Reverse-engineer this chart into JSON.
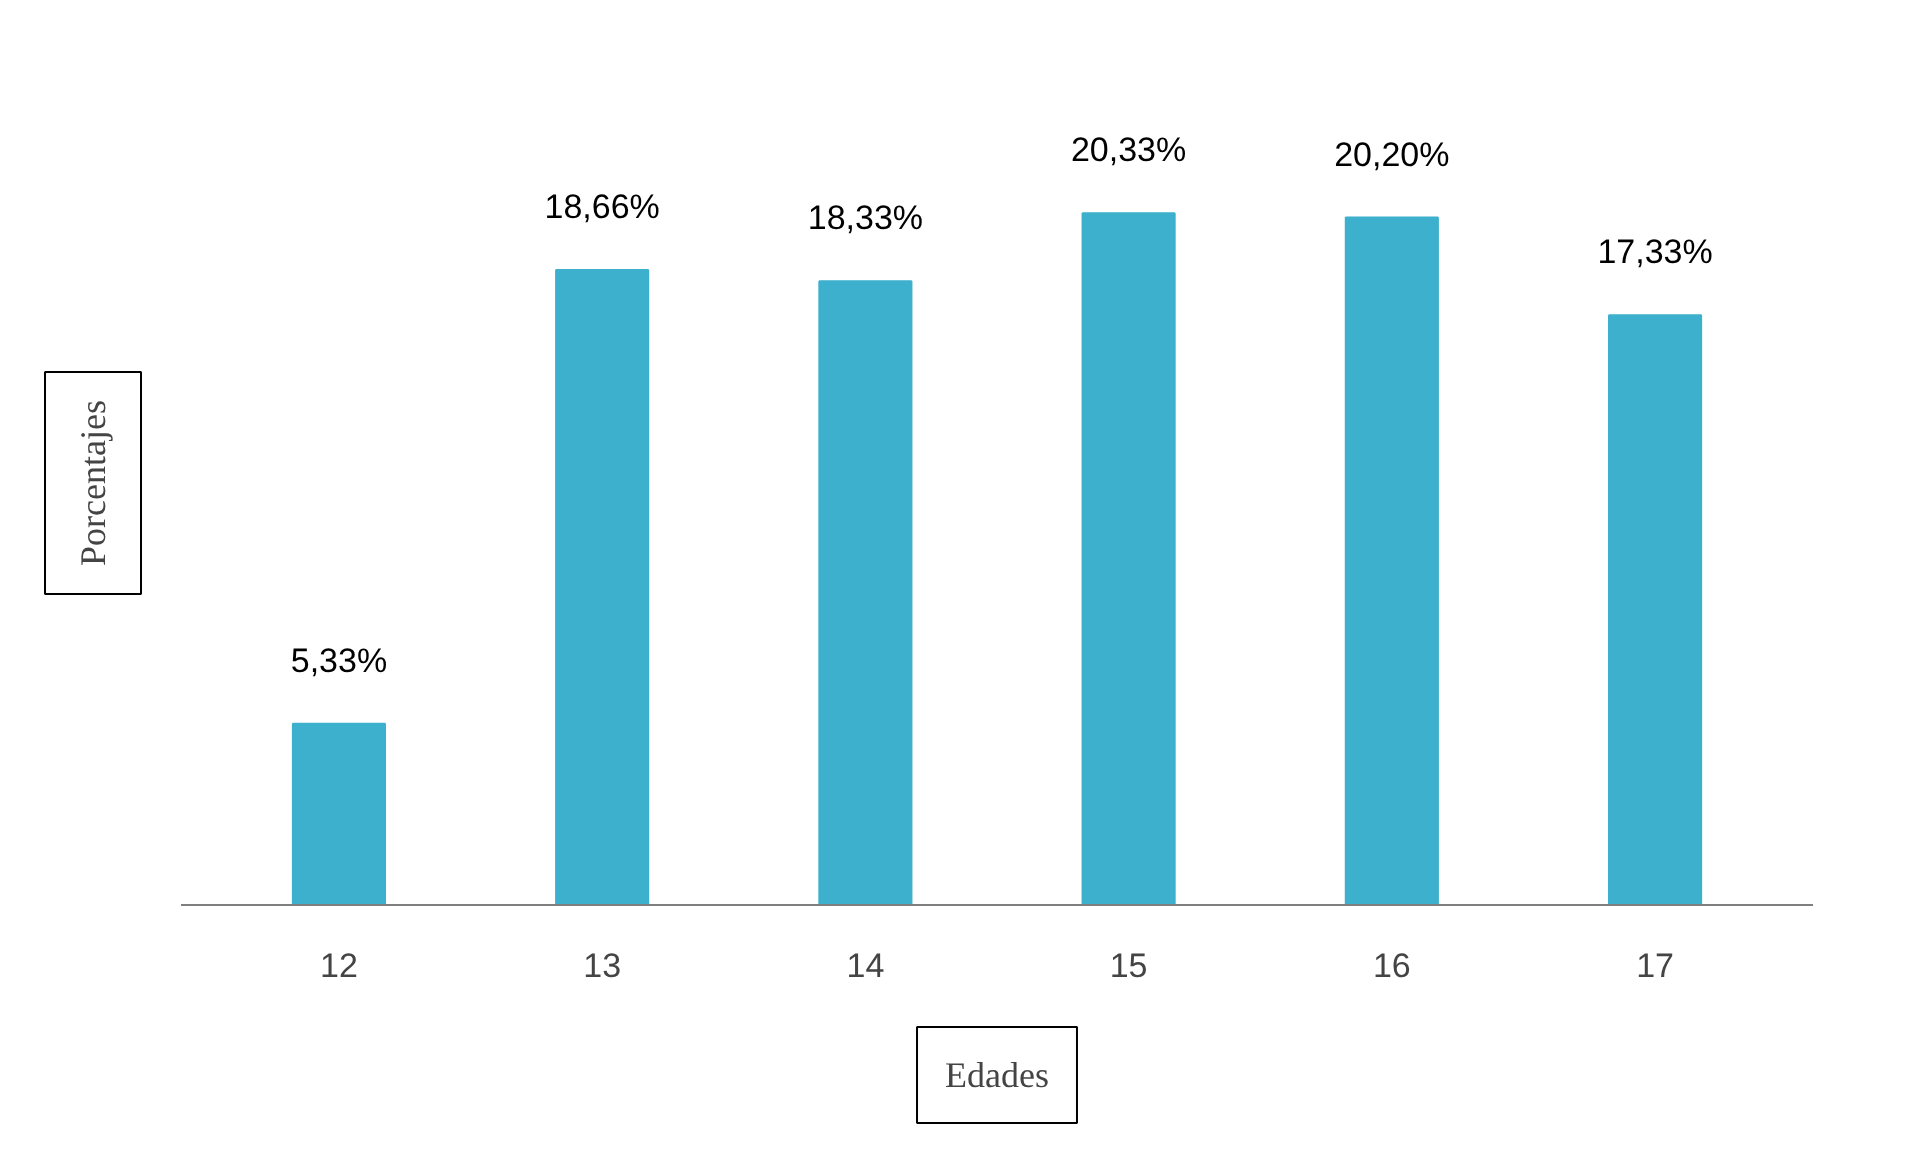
{
  "chart_data": {
    "type": "bar",
    "xlabel": "Edades",
    "ylabel": "Porcentajes",
    "categories": [
      "12",
      "13",
      "14",
      "15",
      "16",
      "17"
    ],
    "values": [
      5.33,
      18.66,
      18.33,
      20.33,
      20.2,
      17.33
    ],
    "value_labels": [
      "5,33%",
      "18,66%",
      "18,33%",
      "20,33%",
      "20,20%",
      "17,33%"
    ],
    "color": "#3cb0cc",
    "grid": false
  }
}
